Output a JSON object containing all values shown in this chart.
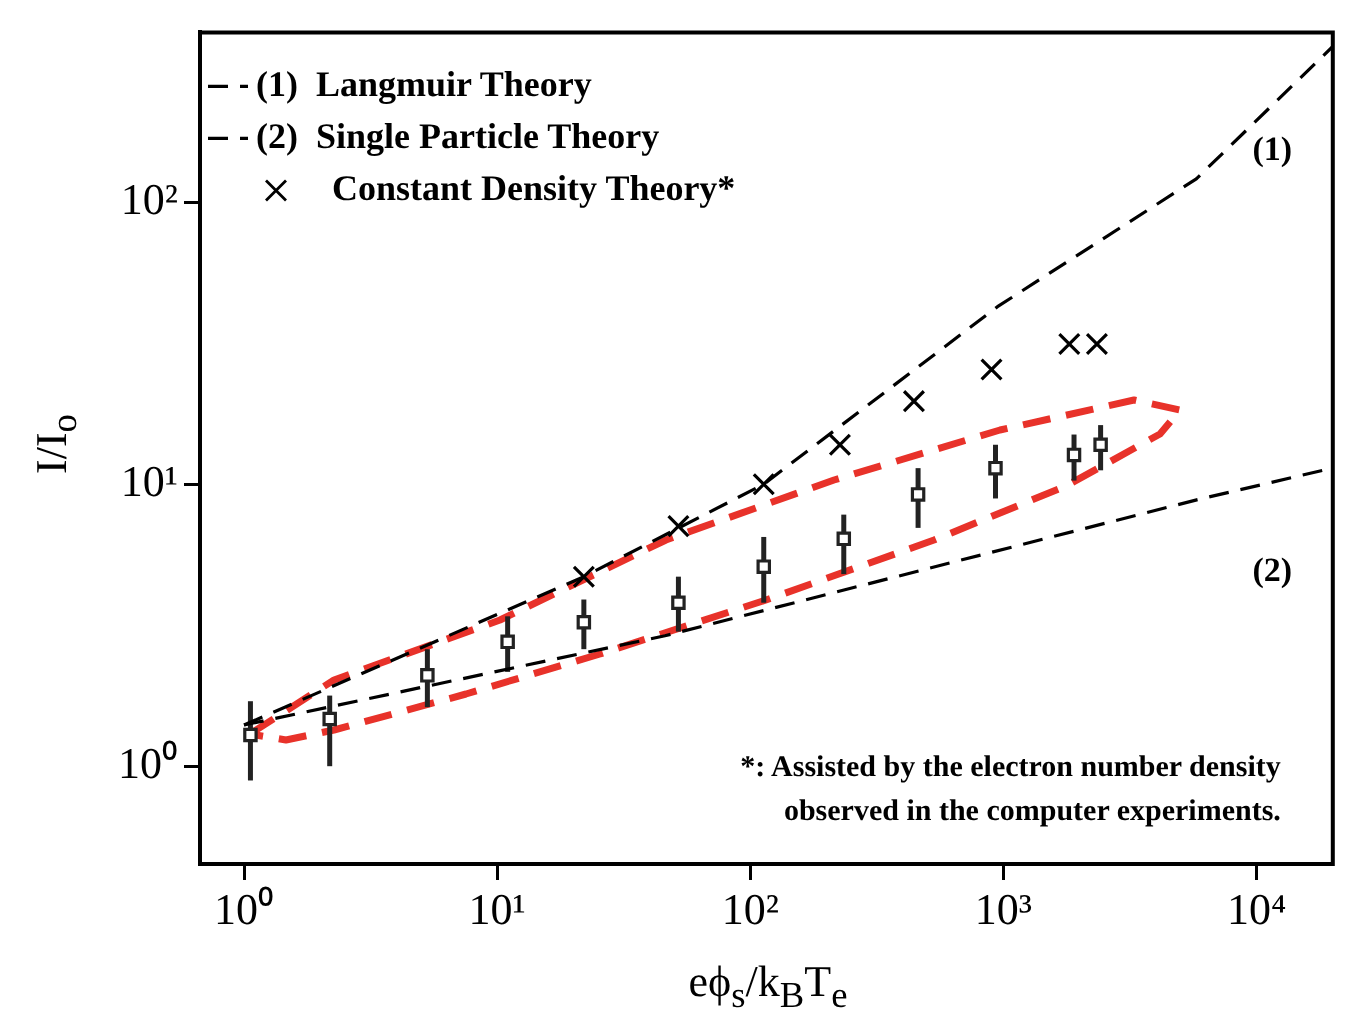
{
  "chart_data": {
    "type": "scatter",
    "xlabel": "eϕ$_{s}$/k$_{B}$T$_{e}$",
    "ylabel": "I/I$_{o}$",
    "log": "xy",
    "legend": "top left",
    "xlim": [
      0.67,
      20000
    ],
    "ylim": [
      0.45,
      400
    ],
    "xticks": [
      {
        "value": 1,
        "label": "10⁰"
      },
      {
        "value": 10,
        "label": "10¹"
      },
      {
        "value": 100,
        "label": "10²"
      },
      {
        "value": 1000,
        "label": "10³"
      },
      {
        "value": 10000,
        "label": "10⁴"
      }
    ],
    "yticks": [
      {
        "value": 1,
        "label": "10⁰"
      },
      {
        "value": 10,
        "label": "10¹"
      },
      {
        "value": 100,
        "label": "10²"
      }
    ],
    "series": [
      {
        "name": "(1)  Langmuir Theory",
        "type": "line",
        "color": "#000000",
        "line_style": "dashed",
        "marker": "none",
        "x": [
          1,
          22,
          113,
          947,
          5780,
          19900
        ],
        "values": [
          1.4,
          4.7,
          10,
          42.6,
          121,
          355
        ]
      },
      {
        "name": "(2)  Single Particle Theory",
        "type": "line",
        "color": "#000000",
        "line_style": "dashed",
        "marker": "none",
        "x": [
          1,
          46,
          5800,
          19900
        ],
        "values": [
          1.4,
          2.9,
          8.8,
          11.4
        ]
      },
      {
        "name": "Constant Density Theory*",
        "type": "scatter",
        "color": "#000000",
        "marker": "cross",
        "x": [
          22,
          52,
          113,
          226,
          443,
          897,
          1820,
          2340
        ],
        "values": [
          4.7,
          7.1,
          10,
          13.8,
          19.7,
          25.5,
          31.4,
          31.4
        ]
      },
      {
        "type": "scatter",
        "color": "#222222",
        "marker": "square",
        "x": [
          1.06,
          2.18,
          5.3,
          11,
          22,
          52,
          113,
          234,
          460,
          930,
          1900,
          2420
        ],
        "values": [
          1.29,
          1.47,
          2.1,
          2.76,
          3.24,
          3.8,
          5.1,
          6.4,
          9.2,
          11.4,
          12.7,
          13.8
        ],
        "errors": [
          [
            0.89,
            1.7
          ],
          [
            1.0,
            1.78
          ],
          [
            1.62,
            2.6
          ],
          [
            2.16,
            3.4
          ],
          [
            2.6,
            3.9
          ],
          [
            3.0,
            4.7
          ],
          [
            3.8,
            6.5
          ],
          [
            4.8,
            7.8
          ],
          [
            7.0,
            11.4
          ],
          [
            8.9,
            13.8
          ],
          [
            10.3,
            15
          ],
          [
            11.2,
            16.2
          ]
        ]
      }
    ],
    "annotations": [
      "(1)",
      "(2)",
      "*: Assisted by the electron number density\nobserved in the computer experiments."
    ]
  }
}
